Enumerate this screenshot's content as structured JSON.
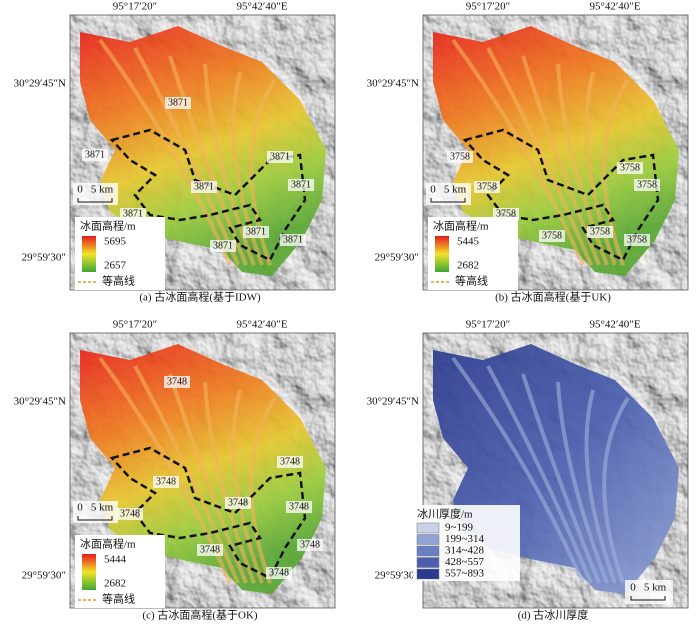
{
  "panels": [
    {
      "caption": "(a) 古冰面高程(基于IDW)",
      "top_ticks": [
        "95°17′20″",
        "95°42′40″E"
      ],
      "left_ticks": [
        "30°29′45″N",
        "29°59′30″"
      ],
      "scale_bar": [
        "0",
        "5 km"
      ],
      "legend": {
        "title": "冰面高程/m",
        "max": 5695,
        "min": 2657,
        "contour": "等高线"
      },
      "contour_labels": [
        3871,
        3871,
        3871,
        3871,
        3871,
        3871,
        3871,
        3871,
        3871
      ]
    },
    {
      "caption": "(b) 古冰面高程(基于UK)",
      "top_ticks": [
        "95°17′20″",
        "95°42′40″E"
      ],
      "left_ticks": [
        "30°29′45″N",
        "29°59′30″"
      ],
      "scale_bar": [
        "0",
        "5 km"
      ],
      "legend": {
        "title": "冰面高程/m",
        "max": 5445,
        "min": 2682,
        "contour": "等高线"
      },
      "contour_labels": [
        3758,
        3758,
        3758,
        3758,
        3758,
        3758,
        3758,
        3758
      ]
    },
    {
      "caption": "(c) 古冰面高程(基于OK)",
      "top_ticks": [
        "95°17′20″",
        "95°42′40″E"
      ],
      "left_ticks": [
        "30°29′45″N",
        "29°59′30″"
      ],
      "scale_bar": [
        "0",
        "5 km"
      ],
      "legend": {
        "title": "冰面高程/m",
        "max": 5444,
        "min": 2682,
        "contour": "等高线"
      },
      "contour_labels": [
        3748,
        3748,
        3748,
        3748,
        3748,
        3748,
        3748,
        3748,
        3748
      ]
    },
    {
      "caption": "(d) 古冰川厚度",
      "top_ticks": [
        "95°17′20″",
        "95°42′40″E"
      ],
      "left_ticks": [
        "30°29′45″N",
        "29°59′30″"
      ],
      "scale_bar": [
        "0",
        "5 km"
      ],
      "legend": {
        "title": "冰川厚度/m",
        "classes": [
          "9~199",
          "199~314",
          "314~428",
          "428~557",
          "557~893"
        ]
      }
    }
  ]
}
